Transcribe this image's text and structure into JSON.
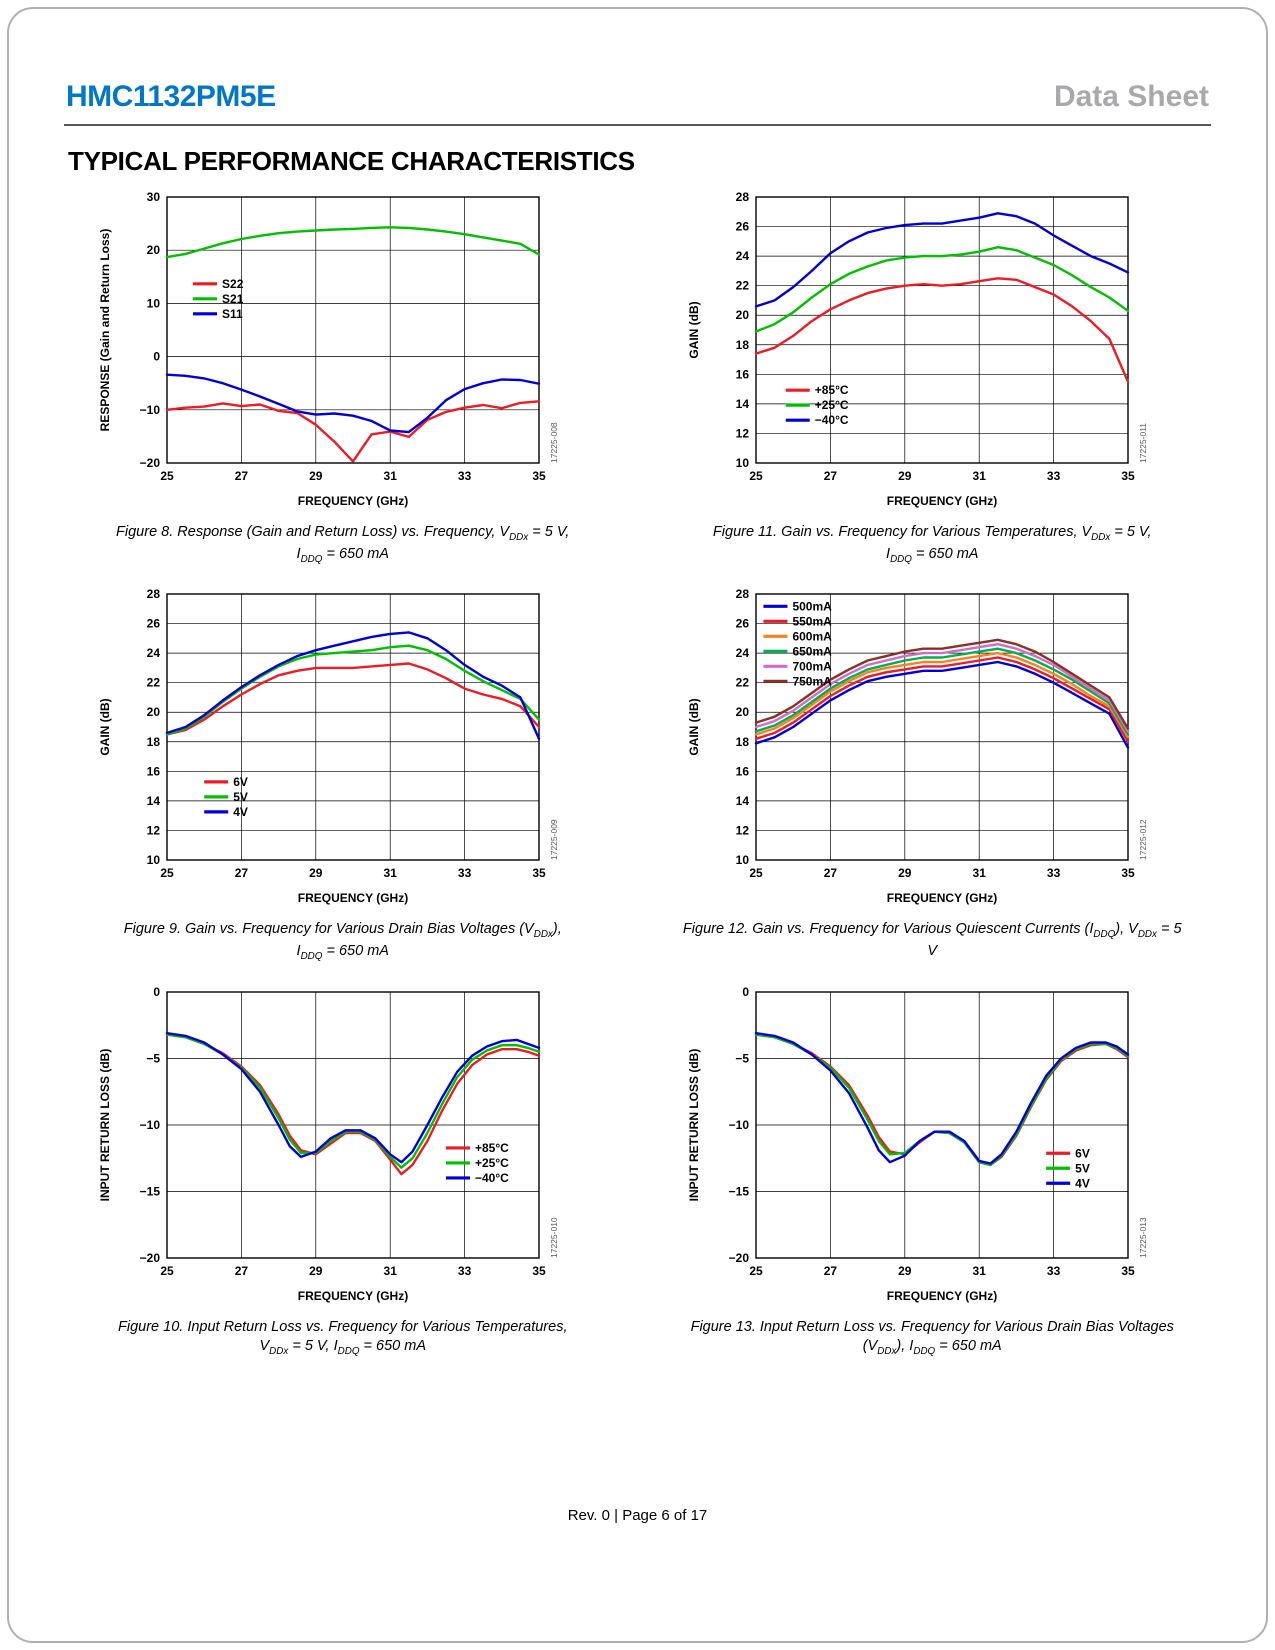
{
  "header": {
    "part_number": "HMC1132PM5E",
    "doc_type": "Data Sheet",
    "part_color": "#0077c8",
    "doc_color": "#a7a9ac"
  },
  "section_title": "TYPICAL PERFORMANCE CHARACTERISTICS",
  "footer": {
    "text": "Rev. 0 | Page 6 of 17"
  },
  "chart_data": [
    {
      "type": "line",
      "figure": "Figure 8",
      "fig_label": "17225-008",
      "caption_lines": [
        "Figure 8. Response (Gain and Return Loss) vs. Frequency, V~DDx~ = 5 V,",
        "I~DDQ~ = 650 mA"
      ],
      "xlabel": "FREQUENCY (GHz)",
      "ylabel": "RESPONSE (Gain and Return Loss)",
      "xlim": [
        25,
        35
      ],
      "ylim": [
        -20,
        30
      ],
      "xticks": [
        25,
        27,
        29,
        31,
        33,
        35
      ],
      "yticks": [
        30,
        20,
        10,
        0,
        -10,
        -20
      ],
      "legend": {
        "fx": 0.07,
        "fy": 0.3
      },
      "x": [
        25,
        25.5,
        26,
        26.5,
        27,
        27.5,
        28,
        28.5,
        29,
        29.5,
        30,
        30.5,
        31,
        31.5,
        32,
        32.5,
        33,
        33.5,
        34,
        34.5,
        35
      ],
      "series": [
        {
          "name": "S22",
          "color": "#ed1c24",
          "y": [
            -10.0,
            -9.6,
            -9.4,
            -8.8,
            -9.3,
            -9.0,
            -10.2,
            -10.6,
            -12.8,
            -16.0,
            -19.7,
            -14.6,
            -14.1,
            -15.1,
            -11.9,
            -10.4,
            -9.6,
            -9.1,
            -9.7,
            -8.7,
            -8.4
          ]
        },
        {
          "name": "S21",
          "color": "#00c000",
          "y": [
            18.7,
            19.3,
            20.3,
            21.3,
            22.1,
            22.7,
            23.2,
            23.5,
            23.7,
            23.9,
            24.0,
            24.2,
            24.3,
            24.2,
            23.9,
            23.5,
            23.0,
            22.4,
            21.8,
            21.2,
            19.2
          ]
        },
        {
          "name": "S11",
          "color": "#0000d8",
          "y": [
            -3.4,
            -3.6,
            -4.1,
            -5.0,
            -6.2,
            -7.5,
            -8.9,
            -10.3,
            -10.9,
            -10.7,
            -11.1,
            -12.1,
            -13.9,
            -14.2,
            -11.5,
            -8.2,
            -6.1,
            -5.0,
            -4.3,
            -4.4,
            -5.1
          ]
        }
      ]
    },
    {
      "type": "line",
      "figure": "Figure 11",
      "fig_label": "17225-011",
      "caption_lines": [
        "Figure 11. Gain vs. Frequency for Various Temperatures, V~DDx~ = 5 V,",
        "I~DDQ~ = 650 mA"
      ],
      "xlabel": "FREQUENCY (GHz)",
      "ylabel": "GAIN (dB)",
      "xlim": [
        25,
        35
      ],
      "ylim": [
        10,
        28
      ],
      "xticks": [
        25,
        27,
        29,
        31,
        33,
        35
      ],
      "yticks": [
        28,
        26,
        24,
        22,
        20,
        18,
        16,
        14,
        12,
        10
      ],
      "legend": {
        "fx": 0.08,
        "fy": 0.7
      },
      "x": [
        25,
        25.5,
        26,
        26.5,
        27,
        27.5,
        28,
        28.5,
        29,
        29.5,
        30,
        30.5,
        31,
        31.5,
        32,
        32.5,
        33,
        33.5,
        34,
        34.5,
        35
      ],
      "series": [
        {
          "name": "+85°C",
          "color": "#ed1c24",
          "y": [
            17.4,
            17.8,
            18.6,
            19.6,
            20.4,
            21.0,
            21.5,
            21.8,
            22.0,
            22.1,
            22.0,
            22.1,
            22.3,
            22.5,
            22.4,
            21.9,
            21.4,
            20.6,
            19.6,
            18.4,
            15.5
          ]
        },
        {
          "name": "+25°C",
          "color": "#00c000",
          "y": [
            18.9,
            19.4,
            20.2,
            21.2,
            22.1,
            22.8,
            23.3,
            23.7,
            23.9,
            24.0,
            24.0,
            24.1,
            24.3,
            24.6,
            24.4,
            23.9,
            23.4,
            22.7,
            21.9,
            21.2,
            20.3
          ]
        },
        {
          "name": "−40°C",
          "color": "#0000d8",
          "y": [
            20.6,
            21.0,
            21.9,
            23.0,
            24.2,
            25.0,
            25.6,
            25.9,
            26.1,
            26.2,
            26.2,
            26.4,
            26.6,
            26.9,
            26.7,
            26.2,
            25.4,
            24.7,
            24.0,
            23.5,
            22.9
          ]
        }
      ]
    },
    {
      "type": "line",
      "figure": "Figure 9",
      "fig_label": "17225-009",
      "caption_lines": [
        "Figure 9. Gain vs. Frequency for Various Drain Bias Voltages (V~DDx~),",
        "I~DDQ~ = 650 mA"
      ],
      "xlabel": "FREQUENCY (GHz)",
      "ylabel": "GAIN (dB)",
      "xlim": [
        25,
        35
      ],
      "ylim": [
        10,
        28
      ],
      "xticks": [
        25,
        27,
        29,
        31,
        33,
        35
      ],
      "yticks": [
        28,
        26,
        24,
        22,
        20,
        18,
        16,
        14,
        12,
        10
      ],
      "legend": {
        "fx": 0.1,
        "fy": 0.68
      },
      "x": [
        25,
        25.5,
        26,
        26.5,
        27,
        27.5,
        28,
        28.5,
        29,
        29.5,
        30,
        30.5,
        31,
        31.5,
        32,
        32.5,
        33,
        33.5,
        34,
        34.5,
        35
      ],
      "series": [
        {
          "name": "6V",
          "color": "#ed1c24",
          "y": [
            18.5,
            18.8,
            19.5,
            20.4,
            21.2,
            21.9,
            22.5,
            22.8,
            23.0,
            23.0,
            23.0,
            23.1,
            23.2,
            23.3,
            22.9,
            22.3,
            21.6,
            21.2,
            20.9,
            20.4,
            19.0
          ]
        },
        {
          "name": "5V",
          "color": "#00c000",
          "y": [
            18.5,
            18.9,
            19.7,
            20.7,
            21.6,
            22.4,
            23.1,
            23.6,
            23.9,
            24.0,
            24.1,
            24.2,
            24.4,
            24.5,
            24.2,
            23.6,
            22.8,
            22.1,
            21.5,
            20.9,
            19.5
          ]
        },
        {
          "name": "4V",
          "color": "#0000d8",
          "y": [
            18.6,
            19.0,
            19.8,
            20.8,
            21.7,
            22.5,
            23.2,
            23.8,
            24.2,
            24.5,
            24.8,
            25.1,
            25.3,
            25.4,
            25.0,
            24.2,
            23.2,
            22.4,
            21.8,
            21.0,
            18.2
          ]
        }
      ]
    },
    {
      "type": "line",
      "figure": "Figure 12",
      "fig_label": "17225-012",
      "caption_lines": [
        "Figure 12. Gain vs. Frequency for Various Quiescent Currents (I~DDQ~), V~DDx~ = 5 V"
      ],
      "xlabel": "FREQUENCY (GHz)",
      "ylabel": "GAIN (dB)",
      "xlim": [
        25,
        35
      ],
      "ylim": [
        10,
        28
      ],
      "xticks": [
        25,
        27,
        29,
        31,
        33,
        35
      ],
      "yticks": [
        28,
        26,
        24,
        22,
        20,
        18,
        16,
        14,
        12,
        10
      ],
      "legend": {
        "fx": 0.02,
        "fy": 0.02
      },
      "x": [
        25,
        25.5,
        26,
        26.5,
        27,
        27.5,
        28,
        28.5,
        29,
        29.5,
        30,
        30.5,
        31,
        31.5,
        32,
        32.5,
        33,
        33.5,
        34,
        34.5,
        35
      ],
      "series": [
        {
          "name": "500mA",
          "color": "#0000d8",
          "y": [
            17.9,
            18.3,
            19.0,
            19.9,
            20.8,
            21.5,
            22.1,
            22.4,
            22.6,
            22.8,
            22.8,
            23.0,
            23.2,
            23.4,
            23.1,
            22.6,
            22.0,
            21.3,
            20.6,
            19.9,
            17.6
          ]
        },
        {
          "name": "550mA",
          "color": "#ed1c24",
          "y": [
            18.2,
            18.6,
            19.3,
            20.2,
            21.1,
            21.8,
            22.4,
            22.7,
            22.9,
            23.1,
            23.1,
            23.3,
            23.5,
            23.7,
            23.4,
            22.9,
            22.3,
            21.6,
            20.9,
            20.2,
            18.0
          ]
        },
        {
          "name": "600mA",
          "color": "#f58220",
          "y": [
            18.5,
            18.9,
            19.6,
            20.5,
            21.4,
            22.1,
            22.7,
            23.0,
            23.2,
            23.4,
            23.4,
            23.6,
            23.8,
            24.0,
            23.7,
            23.2,
            22.6,
            21.9,
            21.1,
            20.4,
            18.3
          ]
        },
        {
          "name": "650mA",
          "color": "#00b04f",
          "y": [
            18.7,
            19.1,
            19.8,
            20.7,
            21.6,
            22.3,
            22.9,
            23.2,
            23.5,
            23.7,
            23.7,
            23.9,
            24.1,
            24.3,
            24.0,
            23.5,
            22.9,
            22.2,
            21.4,
            20.6,
            18.5
          ]
        },
        {
          "name": "700mA",
          "color": "#d36cc8",
          "y": [
            19.0,
            19.4,
            20.1,
            21.0,
            21.9,
            22.6,
            23.2,
            23.5,
            23.8,
            24.0,
            24.0,
            24.2,
            24.4,
            24.6,
            24.3,
            23.8,
            23.2,
            22.4,
            21.6,
            20.8,
            18.7
          ]
        },
        {
          "name": "750mA",
          "color": "#8b3123",
          "y": [
            19.3,
            19.7,
            20.4,
            21.3,
            22.2,
            22.9,
            23.5,
            23.8,
            24.1,
            24.3,
            24.3,
            24.5,
            24.7,
            24.9,
            24.6,
            24.1,
            23.4,
            22.6,
            21.8,
            21.0,
            18.9
          ]
        }
      ]
    },
    {
      "type": "line",
      "figure": "Figure 10",
      "fig_label": "17225-010",
      "caption_lines": [
        "Figure 10. Input Return Loss vs. Frequency for Various Temperatures,",
        "V~DDx~ = 5 V, I~DDQ~ = 650 mA"
      ],
      "xlabel": "FREQUENCY (GHz)",
      "ylabel": "INPUT RETURN LOSS (dB)",
      "xlim": [
        25,
        35
      ],
      "ylim": [
        -20,
        0
      ],
      "xticks": [
        25,
        27,
        29,
        31,
        33,
        35
      ],
      "yticks": [
        0,
        -5,
        -10,
        -15,
        -20
      ],
      "legend": {
        "fx": 0.75,
        "fy": 0.56
      },
      "x": [
        25,
        25.5,
        26,
        26.5,
        27,
        27.5,
        28,
        28.3,
        28.6,
        29,
        29.4,
        29.8,
        30.2,
        30.6,
        31,
        31.3,
        31.6,
        32,
        32.4,
        32.8,
        33.2,
        33.6,
        34,
        34.4,
        34.7,
        35
      ],
      "series": [
        {
          "name": "+85°C",
          "color": "#ed1c24",
          "y": [
            -3.2,
            -3.4,
            -3.9,
            -4.6,
            -5.6,
            -7.0,
            -9.2,
            -10.8,
            -11.9,
            -12.2,
            -11.4,
            -10.6,
            -10.6,
            -11.2,
            -12.6,
            -13.7,
            -13.0,
            -11.2,
            -8.9,
            -6.9,
            -5.5,
            -4.7,
            -4.3,
            -4.3,
            -4.5,
            -4.8
          ]
        },
        {
          "name": "+25°C",
          "color": "#00c000",
          "y": [
            -3.2,
            -3.4,
            -3.9,
            -4.7,
            -5.7,
            -7.2,
            -9.5,
            -11.1,
            -12.1,
            -12.1,
            -11.2,
            -10.5,
            -10.5,
            -11.1,
            -12.4,
            -13.2,
            -12.5,
            -10.6,
            -8.4,
            -6.4,
            -5.1,
            -4.4,
            -4.0,
            -4.0,
            -4.2,
            -4.5
          ]
        },
        {
          "name": "−40°C",
          "color": "#0000d8",
          "y": [
            -3.1,
            -3.3,
            -3.8,
            -4.7,
            -5.8,
            -7.5,
            -10.0,
            -11.6,
            -12.4,
            -12.0,
            -11.0,
            -10.4,
            -10.4,
            -11.0,
            -12.2,
            -12.8,
            -12.0,
            -10.0,
            -7.9,
            -6.0,
            -4.8,
            -4.1,
            -3.7,
            -3.6,
            -3.9,
            -4.2
          ]
        }
      ]
    },
    {
      "type": "line",
      "figure": "Figure 13",
      "fig_label": "17225-013",
      "caption_lines": [
        "Figure 13. Input Return Loss vs. Frequency for Various Drain Bias Voltages",
        "(V~DDx~), I~DDQ~ = 650 mA"
      ],
      "xlabel": "FREQUENCY (GHz)",
      "ylabel": "INPUT RETURN LOSS (dB)",
      "xlim": [
        25,
        35
      ],
      "ylim": [
        -20,
        0
      ],
      "xticks": [
        25,
        27,
        29,
        31,
        33,
        35
      ],
      "yticks": [
        0,
        -5,
        -10,
        -15,
        -20
      ],
      "legend": {
        "fx": 0.78,
        "fy": 0.58
      },
      "x": [
        25,
        25.5,
        26,
        26.5,
        27,
        27.5,
        28,
        28.3,
        28.6,
        29,
        29.4,
        29.8,
        30.2,
        30.6,
        31,
        31.3,
        31.6,
        32,
        32.4,
        32.8,
        33.2,
        33.6,
        34,
        34.4,
        34.7,
        35
      ],
      "series": [
        {
          "name": "6V",
          "color": "#ed1c24",
          "y": [
            -3.2,
            -3.4,
            -3.9,
            -4.6,
            -5.6,
            -7.0,
            -9.3,
            -10.9,
            -12.0,
            -12.2,
            -11.3,
            -10.5,
            -10.6,
            -11.3,
            -12.8,
            -13.0,
            -12.4,
            -10.8,
            -8.6,
            -6.6,
            -5.2,
            -4.4,
            -4.0,
            -3.9,
            -4.3,
            -4.9
          ]
        },
        {
          "name": "5V",
          "color": "#00c000",
          "y": [
            -3.2,
            -3.4,
            -3.9,
            -4.7,
            -5.7,
            -7.2,
            -9.6,
            -11.2,
            -12.2,
            -12.1,
            -11.2,
            -10.5,
            -10.6,
            -11.3,
            -12.8,
            -13.0,
            -12.3,
            -10.7,
            -8.5,
            -6.5,
            -5.1,
            -4.3,
            -3.9,
            -3.9,
            -4.2,
            -4.8
          ]
        },
        {
          "name": "4V",
          "color": "#0000d8",
          "y": [
            -3.1,
            -3.3,
            -3.8,
            -4.7,
            -5.9,
            -7.6,
            -10.2,
            -11.9,
            -12.8,
            -12.3,
            -11.2,
            -10.5,
            -10.5,
            -11.2,
            -12.7,
            -12.9,
            -12.2,
            -10.5,
            -8.3,
            -6.3,
            -5.0,
            -4.2,
            -3.8,
            -3.8,
            -4.1,
            -4.7
          ]
        }
      ]
    }
  ]
}
